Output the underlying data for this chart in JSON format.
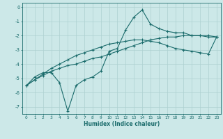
{
  "xlabel": "Humidex (Indice chaleur)",
  "bg_color": "#cce8e8",
  "grid_color": "#add0d0",
  "line_color": "#1a6b6b",
  "xlim": [
    -0.5,
    23.5
  ],
  "ylim": [
    -7.5,
    0.3
  ],
  "xticks": [
    0,
    1,
    2,
    3,
    4,
    5,
    6,
    7,
    8,
    9,
    10,
    11,
    12,
    13,
    14,
    15,
    16,
    17,
    18,
    19,
    20,
    21,
    22,
    23
  ],
  "yticks": [
    0,
    -1,
    -2,
    -3,
    -4,
    -5,
    -6,
    -7
  ],
  "line1_x": [
    0,
    1,
    2,
    3,
    4,
    5,
    6,
    7,
    8,
    9,
    10,
    11,
    12,
    13,
    14,
    15,
    16,
    17,
    18,
    19,
    20,
    21,
    22,
    23
  ],
  "line1_y": [
    -5.5,
    -4.9,
    -4.6,
    -4.6,
    -5.3,
    -7.3,
    -5.5,
    -5.1,
    -4.9,
    -4.5,
    -3.1,
    -2.9,
    -1.6,
    -0.7,
    -0.2,
    -1.2,
    -1.5,
    -1.7,
    -1.8,
    -1.8,
    -2.0,
    -2.0,
    -2.1,
    -2.1
  ],
  "line2_x": [
    0,
    1,
    2,
    3,
    4,
    5,
    6,
    7,
    8,
    9,
    10,
    11,
    12,
    13,
    14,
    15,
    16,
    17,
    18,
    19,
    20,
    21,
    22,
    23
  ],
  "line2_y": [
    -5.5,
    -5.1,
    -4.8,
    -4.5,
    -4.3,
    -4.1,
    -4.0,
    -3.8,
    -3.6,
    -3.5,
    -3.3,
    -3.1,
    -2.9,
    -2.7,
    -2.5,
    -2.3,
    -2.2,
    -2.1,
    -2.1,
    -2.0,
    -2.0,
    -2.0,
    -2.0,
    -2.1
  ],
  "line3_x": [
    0,
    1,
    2,
    3,
    4,
    5,
    6,
    7,
    8,
    9,
    10,
    11,
    12,
    13,
    14,
    15,
    16,
    17,
    18,
    19,
    20,
    21,
    22,
    23
  ],
  "line3_y": [
    -5.5,
    -5.1,
    -4.7,
    -4.3,
    -4.0,
    -3.7,
    -3.4,
    -3.2,
    -3.0,
    -2.8,
    -2.6,
    -2.5,
    -2.4,
    -2.3,
    -2.3,
    -2.4,
    -2.5,
    -2.7,
    -2.9,
    -3.0,
    -3.1,
    -3.2,
    -3.3,
    -2.1
  ]
}
